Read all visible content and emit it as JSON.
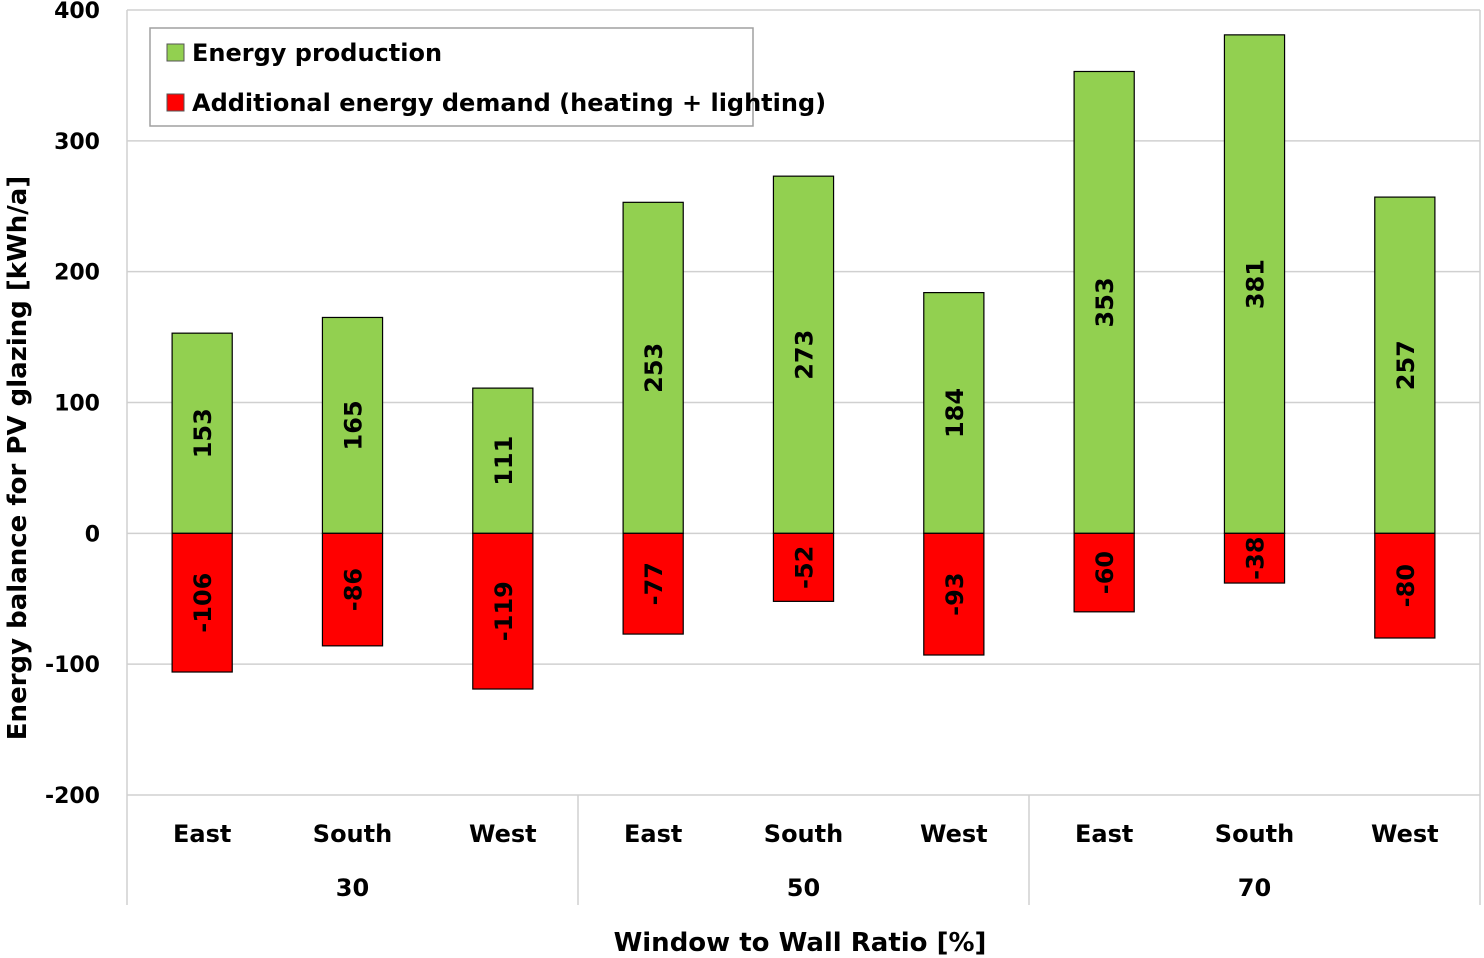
{
  "chart_data": {
    "type": "bar",
    "title": "",
    "ylabel": "Energy balance for PV glazing [kWh/a]",
    "xlabel": "Window to Wall Ratio [%]",
    "ylim": [
      -200,
      400
    ],
    "yticks": [
      400,
      300,
      200,
      100,
      0,
      -100,
      -200
    ],
    "grid": true,
    "legend_position": "top-left",
    "groups": [
      {
        "label": "30",
        "categories": [
          "East",
          "South",
          "West"
        ]
      },
      {
        "label": "50",
        "categories": [
          "East",
          "South",
          "West"
        ]
      },
      {
        "label": "70",
        "categories": [
          "East",
          "South",
          "West"
        ]
      }
    ],
    "series": [
      {
        "name": "Energy production",
        "color": "#92d050",
        "values": [
          153,
          165,
          111,
          253,
          273,
          184,
          353,
          381,
          257
        ]
      },
      {
        "name": "Additional energy demand (heating + lighting)",
        "color": "#ff0000",
        "values": [
          -106,
          -86,
          -119,
          -77,
          -52,
          -93,
          -60,
          -38,
          -80
        ]
      }
    ]
  }
}
